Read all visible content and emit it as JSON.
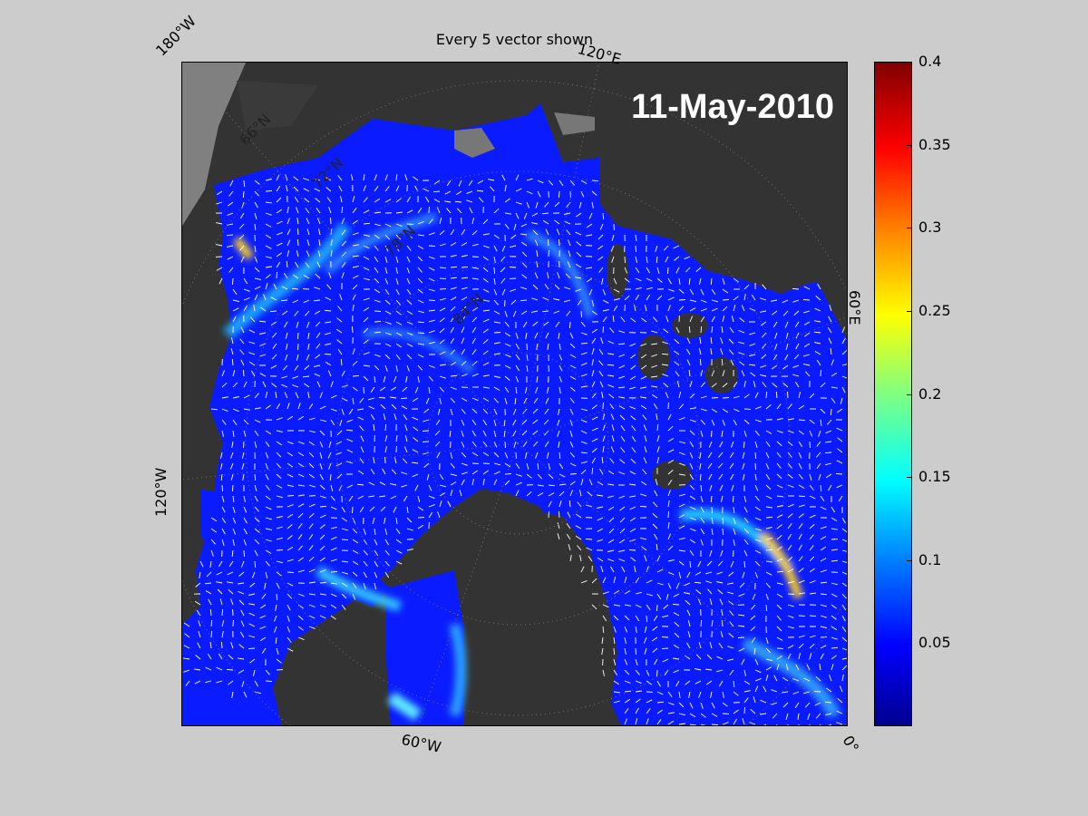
{
  "map": {
    "title": "Every 5 vector shown",
    "date": "11-May-2010",
    "edge_labels": {
      "top_left": "180°W",
      "top_mid": "120°E",
      "right_mid": "60°E",
      "left_mid": "120°W",
      "bottom_mid": "60°W",
      "bottom_right": "0°"
    },
    "inner_labels": [
      "66°N",
      "72°N",
      "78°N",
      "84°N"
    ]
  },
  "colorbar": {
    "min": 0,
    "max": 0.4,
    "colormap": "jet",
    "ticks": [
      "0.4",
      "0.35",
      "0.3",
      "0.25",
      "0.2",
      "0.15",
      "0.1",
      "0.05"
    ],
    "tick_values": [
      0.4,
      0.35,
      0.3,
      0.25,
      0.2,
      0.15,
      0.1,
      0.05
    ]
  },
  "colors": {
    "background": "#cccccc",
    "land": "#333333",
    "outside_land": "#808080",
    "ocean_base": "#0a1cff",
    "vectors": "#ffffff"
  }
}
